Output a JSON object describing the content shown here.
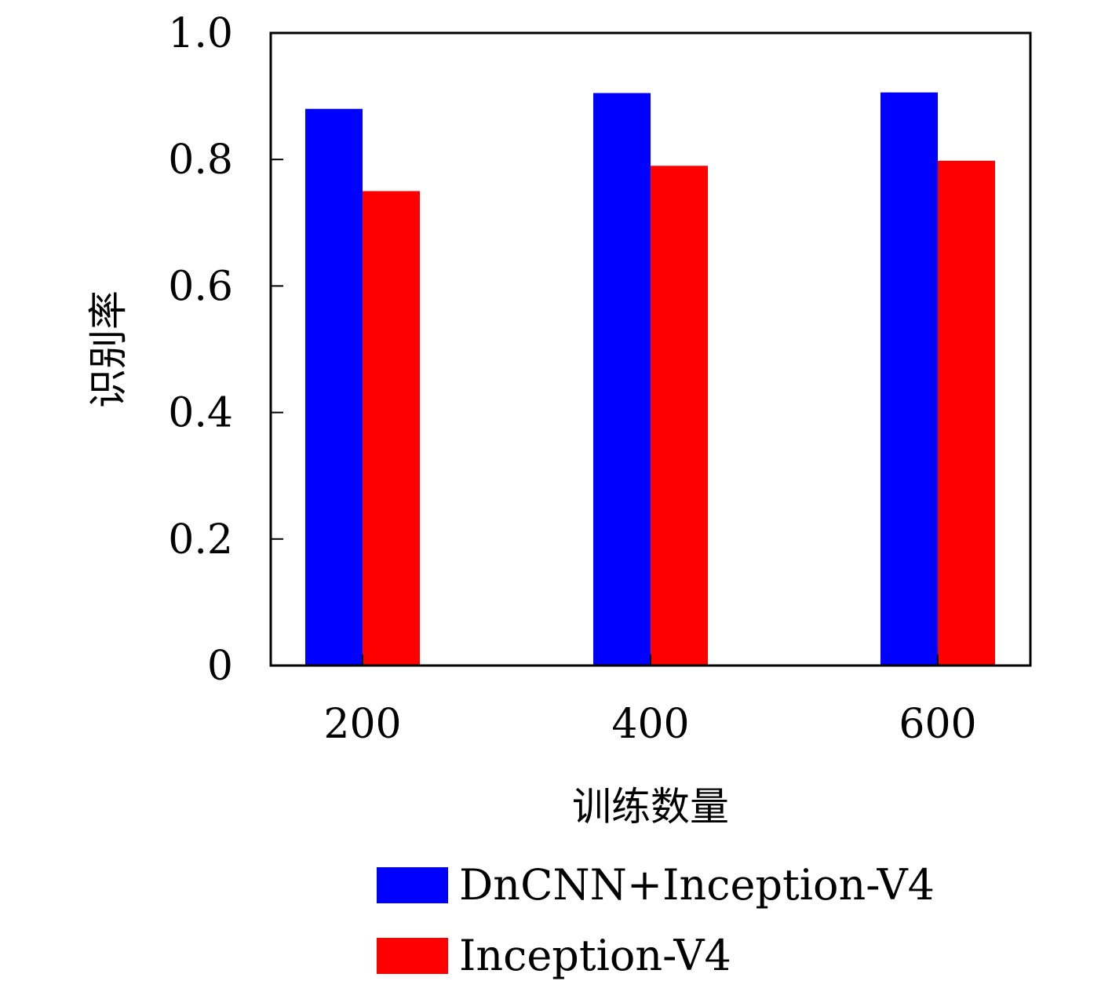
{
  "chart_data": {
    "type": "bar",
    "categories": [
      "200",
      "400",
      "600"
    ],
    "series": [
      {
        "name": "DnCNN+Inception-V4",
        "values": [
          0.88,
          0.905,
          0.906
        ],
        "color": "#0000ff"
      },
      {
        "name": "Inception-V4",
        "values": [
          0.75,
          0.79,
          0.798
        ],
        "color": "#ff0000"
      }
    ],
    "xlabel": "训练数量",
    "ylabel": "识别率",
    "ylim": [
      0,
      1.0
    ],
    "yticks": [
      0,
      0.2,
      0.4,
      0.6,
      0.8,
      1.0
    ],
    "ytick_labels": [
      "0",
      "0.2",
      "0.4",
      "0.6",
      "0.8",
      "1.0"
    ],
    "grid": false,
    "legend_position": "bottom"
  }
}
